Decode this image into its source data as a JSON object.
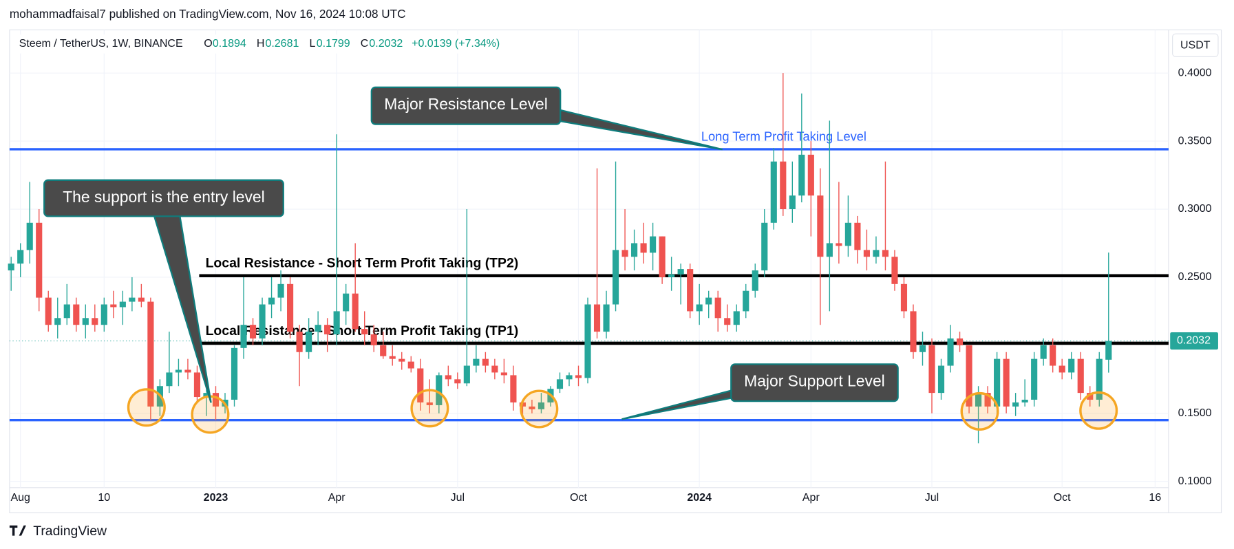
{
  "header": "mohammadfaisal7 published on TradingView.com, Nov 16, 2024 10:08 UTC",
  "brand": "TradingView",
  "chart_data": {
    "type": "candlestick",
    "symbol": "Steem / TetherUS, 1W, BINANCE",
    "ohlc_letters": [
      "O",
      "H",
      "L",
      "C"
    ],
    "change_label": "+0.0139 (+7.34%)",
    "currency": "USDT",
    "up_color": "#26a69a",
    "down_color": "#ef5350",
    "grid": true,
    "categories": [
      null,
      "Aug",
      null,
      null,
      null,
      null,
      null,
      null,
      null,
      null,
      "10",
      null,
      null,
      null,
      null,
      null,
      null,
      null,
      null,
      null,
      null,
      null,
      "2023",
      null,
      null,
      null,
      null,
      null,
      null,
      null,
      null,
      null,
      null,
      null,
      null,
      "Apr",
      null,
      null,
      null,
      null,
      null,
      null,
      null,
      null,
      null,
      null,
      null,
      null,
      "Jul",
      null,
      null,
      null,
      null,
      null,
      null,
      null,
      null,
      null,
      null,
      null,
      null,
      "Oct",
      null,
      null,
      null,
      null,
      null,
      null,
      null,
      null,
      null,
      null,
      null,
      null,
      "2024",
      null,
      null,
      null,
      null,
      null,
      null,
      null,
      null,
      null,
      null,
      null,
      "Apr",
      null,
      null,
      null,
      null,
      null,
      null,
      null,
      null,
      null,
      null,
      null,
      null,
      "Jul",
      null,
      null,
      null,
      null,
      null,
      null,
      null,
      null,
      null,
      null,
      null,
      null,
      null,
      "Oct",
      null,
      null,
      null,
      null,
      null,
      null,
      null,
      null,
      null,
      "16"
    ],
    "open": [
      0.255,
      0.26,
      0.27,
      0.29,
      0.235,
      0.215,
      0.22,
      0.23,
      0.215,
      0.22,
      0.215,
      0.23,
      0.228,
      0.232,
      0.235,
      0.232,
      0.155,
      0.17,
      0.18,
      0.182,
      0.18,
      0.162,
      0.165,
      0.155,
      0.16,
      0.198,
      0.215,
      0.205,
      0.23,
      0.235,
      0.245,
      0.21,
      0.195,
      0.21,
      0.215,
      0.208,
      0.225,
      0.238,
      0.212,
      0.208,
      0.2,
      0.192,
      0.19,
      0.188,
      0.183,
      0.158,
      0.156,
      0.178,
      0.175,
      0.172,
      0.185,
      0.19,
      0.185,
      0.18,
      0.178,
      0.158,
      0.155,
      0.153,
      0.158,
      0.168,
      0.175,
      0.178,
      0.176,
      0.23,
      0.21,
      0.23,
      0.27,
      0.265,
      0.275,
      0.268,
      0.28,
      0.25,
      0.252,
      0.256,
      0.225,
      0.23,
      0.235,
      0.22,
      0.215,
      0.225,
      0.24,
      0.255,
      0.29,
      0.335,
      0.3,
      0.31,
      0.34,
      0.31,
      0.265,
      0.275,
      0.273,
      0.29,
      0.27,
      0.265,
      0.27,
      0.265,
      0.245,
      0.225,
      0.195,
      0.2,
      0.165,
      0.185,
      0.205,
      0.2,
      0.155,
      0.165,
      0.155,
      0.19,
      0.155,
      0.158,
      0.16,
      0.19,
      0.2,
      0.185,
      0.18,
      0.19,
      0.165,
      0.16,
      0.1894,
      null,
      null,
      null,
      null,
      null
    ],
    "high": [
      0.265,
      0.275,
      0.32,
      0.3,
      0.24,
      0.235,
      0.245,
      0.235,
      0.23,
      0.23,
      0.235,
      0.24,
      0.24,
      0.25,
      0.245,
      0.235,
      0.175,
      0.21,
      0.19,
      0.19,
      0.185,
      0.17,
      0.17,
      0.165,
      0.2,
      0.25,
      0.22,
      0.235,
      0.25,
      0.255,
      0.25,
      0.215,
      0.22,
      0.225,
      0.22,
      0.355,
      0.245,
      0.275,
      0.225,
      0.215,
      0.21,
      0.2,
      0.195,
      0.192,
      0.19,
      0.175,
      0.18,
      0.185,
      0.18,
      0.3,
      0.2,
      0.195,
      0.19,
      0.19,
      0.185,
      0.16,
      0.16,
      0.165,
      0.17,
      0.18,
      0.18,
      0.185,
      0.235,
      0.33,
      0.24,
      0.335,
      0.3,
      0.285,
      0.29,
      0.29,
      0.28,
      0.265,
      0.26,
      0.26,
      0.245,
      0.24,
      0.24,
      0.23,
      0.23,
      0.245,
      0.26,
      0.3,
      0.345,
      0.4,
      0.335,
      0.385,
      0.35,
      0.33,
      0.365,
      0.32,
      0.31,
      0.295,
      0.285,
      0.28,
      0.335,
      0.27,
      0.25,
      0.23,
      0.21,
      0.205,
      0.19,
      0.215,
      0.21,
      0.2,
      0.17,
      0.17,
      0.195,
      0.195,
      0.165,
      0.175,
      0.195,
      0.205,
      0.205,
      0.19,
      0.195,
      0.195,
      0.17,
      0.195,
      0.2681,
      null,
      null,
      null,
      null,
      null
    ],
    "low": [
      0.24,
      0.25,
      0.26,
      0.225,
      0.21,
      0.205,
      0.215,
      0.21,
      0.205,
      0.21,
      0.21,
      0.22,
      0.215,
      0.225,
      0.228,
      0.145,
      0.148,
      0.165,
      0.17,
      0.175,
      0.158,
      0.148,
      0.145,
      0.15,
      0.155,
      0.19,
      0.2,
      0.2,
      0.22,
      0.225,
      0.205,
      0.17,
      0.19,
      0.2,
      0.195,
      0.2,
      0.215,
      0.21,
      0.2,
      0.195,
      0.19,
      0.185,
      0.182,
      0.18,
      0.152,
      0.15,
      0.15,
      0.17,
      0.168,
      0.17,
      0.18,
      0.18,
      0.175,
      0.172,
      0.152,
      0.148,
      0.15,
      0.15,
      0.155,
      0.165,
      0.17,
      0.17,
      0.172,
      0.205,
      0.205,
      0.225,
      0.255,
      0.255,
      0.26,
      0.255,
      0.245,
      0.24,
      0.23,
      0.22,
      0.215,
      0.22,
      0.21,
      0.21,
      0.21,
      0.22,
      0.235,
      0.25,
      0.285,
      0.295,
      0.29,
      0.305,
      0.28,
      0.215,
      0.225,
      0.26,
      0.265,
      0.26,
      0.255,
      0.26,
      0.255,
      0.24,
      0.22,
      0.19,
      0.185,
      0.15,
      0.16,
      0.18,
      0.195,
      0.15,
      0.128,
      0.15,
      0.15,
      0.15,
      0.148,
      0.155,
      0.155,
      0.185,
      0.18,
      0.175,
      0.175,
      0.16,
      0.155,
      0.155,
      0.1799,
      null,
      null,
      null,
      null,
      null
    ],
    "close": [
      0.26,
      0.27,
      0.29,
      0.235,
      0.215,
      0.22,
      0.23,
      0.215,
      0.22,
      0.215,
      0.23,
      0.228,
      0.232,
      0.235,
      0.232,
      0.155,
      0.17,
      0.18,
      0.182,
      0.18,
      0.162,
      0.165,
      0.155,
      0.16,
      0.198,
      0.215,
      0.205,
      0.23,
      0.235,
      0.245,
      0.21,
      0.195,
      0.21,
      0.215,
      0.208,
      0.225,
      0.238,
      0.212,
      0.208,
      0.2,
      0.192,
      0.19,
      0.188,
      0.183,
      0.158,
      0.156,
      0.178,
      0.175,
      0.172,
      0.185,
      0.19,
      0.185,
      0.18,
      0.178,
      0.158,
      0.155,
      0.153,
      0.158,
      0.168,
      0.175,
      0.178,
      0.176,
      0.23,
      0.21,
      0.23,
      0.27,
      0.265,
      0.275,
      0.268,
      0.28,
      0.25,
      0.252,
      0.256,
      0.225,
      0.23,
      0.235,
      0.22,
      0.215,
      0.225,
      0.24,
      0.255,
      0.29,
      0.335,
      0.3,
      0.31,
      0.34,
      0.31,
      0.265,
      0.275,
      0.273,
      0.29,
      0.27,
      0.265,
      0.27,
      0.265,
      0.245,
      0.225,
      0.195,
      0.2,
      0.165,
      0.185,
      0.205,
      0.2,
      0.155,
      0.165,
      0.155,
      0.19,
      0.155,
      0.158,
      0.16,
      0.19,
      0.2,
      0.185,
      0.18,
      0.19,
      0.165,
      0.16,
      0.19,
      0.2032,
      null,
      null,
      null,
      null,
      null
    ],
    "ylim": [
      0.0954,
      0.4317
    ],
    "yticks": [
      {
        "value": 0.4,
        "label": "0.4000"
      },
      {
        "value": 0.35,
        "label": "0.3500"
      },
      {
        "value": 0.3,
        "label": "0.3000"
      },
      {
        "value": 0.25,
        "label": "0.2500"
      },
      {
        "value": 0.15,
        "label": "0.1500"
      },
      {
        "value": 0.1,
        "label": "0.1000"
      }
    ],
    "levels": [
      {
        "value": 0.344,
        "label": "Long Term Profit Taking Level",
        "color": "#2962ff"
      },
      {
        "value": 0.2511,
        "label": "Local Resistance - Short Term Profit Taking (TP2)",
        "color": "#000000"
      },
      {
        "value": 0.2015,
        "label": "Local Resistance - Short Term Profit Taking (TP1)",
        "color": "#000000"
      },
      {
        "value": 0.145,
        "color": "#2962ff"
      }
    ],
    "annotations": [
      "Major Resistance Level",
      "The support is the entry level",
      "Major Support Level"
    ]
  }
}
